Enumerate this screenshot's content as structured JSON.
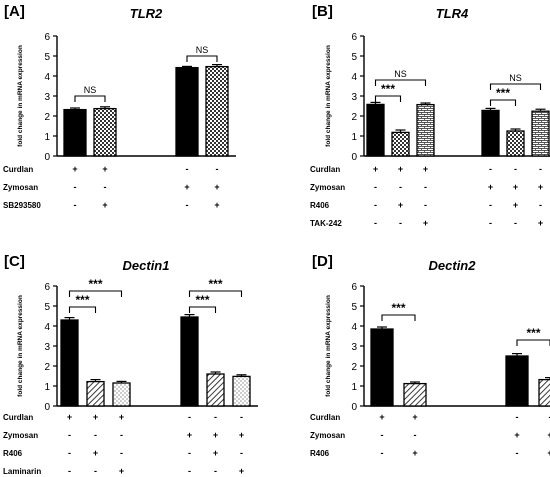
{
  "colors": {
    "ink": "#000000",
    "background": "#ffffff"
  },
  "chart_data": [
    {
      "panel_label": "[A]",
      "type": "bar",
      "title": "TLR2",
      "ylabel": "fold change in mRNA expression",
      "ylim": [
        0,
        6
      ],
      "yticks": [
        "0",
        "1",
        "2",
        "3",
        "4",
        "5",
        "6"
      ],
      "grid": false,
      "bars": [
        {
          "group": 0,
          "value": 2.32,
          "error": 0.08,
          "pattern": "solid"
        },
        {
          "group": 0,
          "value": 2.37,
          "error": 0.09,
          "pattern": "checker"
        },
        {
          "group": 1,
          "value": 4.42,
          "error": 0.06,
          "pattern": "solid"
        },
        {
          "group": 1,
          "value": 4.47,
          "error": 0.1,
          "pattern": "checker"
        }
      ],
      "brackets": [
        {
          "from": 0,
          "to": 1,
          "y": 3.0,
          "label": "NS"
        },
        {
          "from": 2,
          "to": 3,
          "y": 5.0,
          "label": "NS"
        }
      ],
      "treatments": [
        {
          "label": "Curdlan",
          "marks": [
            "+",
            "+",
            "-",
            "-"
          ]
        },
        {
          "label": "Zymosan",
          "marks": [
            "-",
            "-",
            "+",
            "+"
          ]
        },
        {
          "label": "SB293580",
          "marks": [
            "-",
            "+",
            "-",
            "+"
          ]
        }
      ]
    },
    {
      "panel_label": "[B]",
      "type": "bar",
      "title": "TLR4",
      "ylabel": "fold change in mRNA expression",
      "ylim": [
        0,
        6
      ],
      "yticks": [
        "0",
        "1",
        "2",
        "3",
        "4",
        "5",
        "6"
      ],
      "grid": false,
      "bars": [
        {
          "group": 0,
          "value": 2.58,
          "error": 0.1,
          "pattern": "solid"
        },
        {
          "group": 0,
          "value": 1.18,
          "error": 0.12,
          "pattern": "checker"
        },
        {
          "group": 0,
          "value": 2.57,
          "error": 0.08,
          "pattern": "brick"
        },
        {
          "group": 1,
          "value": 2.28,
          "error": 0.1,
          "pattern": "solid"
        },
        {
          "group": 1,
          "value": 1.25,
          "error": 0.1,
          "pattern": "checker"
        },
        {
          "group": 1,
          "value": 2.24,
          "error": 0.1,
          "pattern": "brick"
        }
      ],
      "brackets": [
        {
          "from": 0,
          "to": 1,
          "y": 3.0,
          "label": "***"
        },
        {
          "from": 0,
          "to": 2,
          "y": 3.8,
          "label": "NS"
        },
        {
          "from": 3,
          "to": 4,
          "y": 2.8,
          "label": "***"
        },
        {
          "from": 3,
          "to": 5,
          "y": 3.6,
          "label": "NS"
        }
      ],
      "treatments": [
        {
          "label": "Curdlan",
          "marks": [
            "+",
            "+",
            "+",
            "-",
            "-",
            "-"
          ]
        },
        {
          "label": "Zymosan",
          "marks": [
            "-",
            "-",
            "-",
            "+",
            "+",
            "+"
          ]
        },
        {
          "label": "R406",
          "marks": [
            "-",
            "+",
            "-",
            "-",
            "+",
            "-"
          ]
        },
        {
          "label": "TAK-242",
          "marks": [
            "-",
            "-",
            "+",
            "-",
            "-",
            "+"
          ]
        }
      ]
    },
    {
      "panel_label": "[C]",
      "type": "bar",
      "title": "Dectin1",
      "ylabel": "fold change in mRNA expression",
      "ylim": [
        0,
        6
      ],
      "yticks": [
        "0",
        "1",
        "2",
        "3",
        "4",
        "5",
        "6"
      ],
      "grid": false,
      "bars": [
        {
          "group": 0,
          "value": 4.3,
          "error": 0.12,
          "pattern": "solid"
        },
        {
          "group": 0,
          "value": 1.22,
          "error": 0.1,
          "pattern": "hatch"
        },
        {
          "group": 0,
          "value": 1.15,
          "error": 0.08,
          "pattern": "dots"
        },
        {
          "group": 1,
          "value": 4.45,
          "error": 0.12,
          "pattern": "solid"
        },
        {
          "group": 1,
          "value": 1.6,
          "error": 0.1,
          "pattern": "hatch"
        },
        {
          "group": 1,
          "value": 1.48,
          "error": 0.08,
          "pattern": "dots"
        }
      ],
      "brackets": [
        {
          "from": 0,
          "to": 1,
          "y": 4.95,
          "label": "***"
        },
        {
          "from": 0,
          "to": 2,
          "y": 5.75,
          "label": "***"
        },
        {
          "from": 3,
          "to": 4,
          "y": 4.95,
          "label": "***"
        },
        {
          "from": 3,
          "to": 5,
          "y": 5.75,
          "label": "***"
        }
      ],
      "treatments": [
        {
          "label": "Curdlan",
          "marks": [
            "+",
            "+",
            "+",
            "-",
            "-",
            "-"
          ]
        },
        {
          "label": "Zymosan",
          "marks": [
            "-",
            "-",
            "-",
            "+",
            "+",
            "+"
          ]
        },
        {
          "label": "R406",
          "marks": [
            "-",
            "+",
            "-",
            "-",
            "+",
            "-"
          ]
        },
        {
          "label": "Laminarin",
          "marks": [
            "-",
            "-",
            "+",
            "-",
            "-",
            "+"
          ]
        }
      ]
    },
    {
      "panel_label": "[D]",
      "type": "bar",
      "title": "Dectin2",
      "ylabel": "fold change in mRNA expression",
      "ylim": [
        0,
        6
      ],
      "yticks": [
        "0",
        "1",
        "2",
        "3",
        "4",
        "5",
        "6"
      ],
      "grid": false,
      "bars": [
        {
          "group": 0,
          "value": 3.85,
          "error": 0.1,
          "pattern": "solid"
        },
        {
          "group": 0,
          "value": 1.12,
          "error": 0.08,
          "pattern": "hatch"
        },
        {
          "group": 1,
          "value": 2.5,
          "error": 0.12,
          "pattern": "solid"
        },
        {
          "group": 1,
          "value": 1.32,
          "error": 0.1,
          "pattern": "hatch"
        }
      ],
      "brackets": [
        {
          "from": 0,
          "to": 1,
          "y": 4.55,
          "label": "***"
        },
        {
          "from": 2,
          "to": 3,
          "y": 3.3,
          "label": "***"
        }
      ],
      "treatments": [
        {
          "label": "Curdlan",
          "marks": [
            "+",
            "+",
            "-",
            "-"
          ]
        },
        {
          "label": "Zymosan",
          "marks": [
            "-",
            "-",
            "+",
            "+"
          ]
        },
        {
          "label": "R406",
          "marks": [
            "-",
            "+",
            "-",
            "+"
          ]
        }
      ]
    }
  ]
}
